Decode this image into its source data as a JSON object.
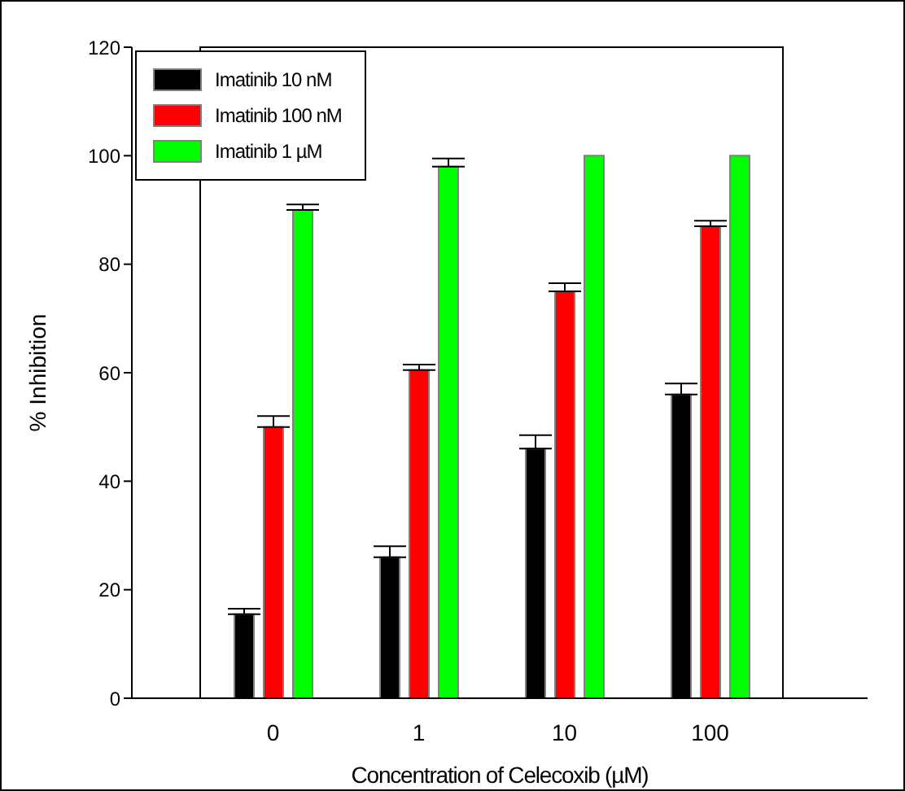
{
  "chart_data": {
    "type": "bar",
    "xlabel": "Concentration of Celecoxib (µM)",
    "ylabel": "% Inhibition",
    "categories": [
      "0",
      "1",
      "10",
      "100"
    ],
    "series": [
      {
        "name": "Imatinib 10 nM",
        "color": "#000000",
        "values": [
          15.5,
          26,
          46,
          56
        ],
        "errors": [
          [
            15.5,
            16.5
          ],
          [
            26,
            28
          ],
          [
            46,
            48.5
          ],
          [
            56,
            58
          ]
        ]
      },
      {
        "name": "Imatinib 100 nM",
        "color": "#ff0000",
        "values": [
          50,
          60.5,
          75,
          87
        ],
        "errors": [
          [
            50,
            52
          ],
          [
            60.5,
            61.5
          ],
          [
            75,
            76.5
          ],
          [
            87,
            88
          ]
        ]
      },
      {
        "name": "Imatinib 1 µM",
        "color": "#00ff00",
        "values": [
          90,
          98,
          100,
          100
        ],
        "errors": [
          [
            90,
            91
          ],
          [
            98,
            99.5
          ],
          null,
          null
        ]
      }
    ],
    "ylim": [
      0,
      120
    ],
    "yticks": [
      0,
      20,
      40,
      60,
      80,
      100,
      120
    ],
    "legend": "top left"
  }
}
